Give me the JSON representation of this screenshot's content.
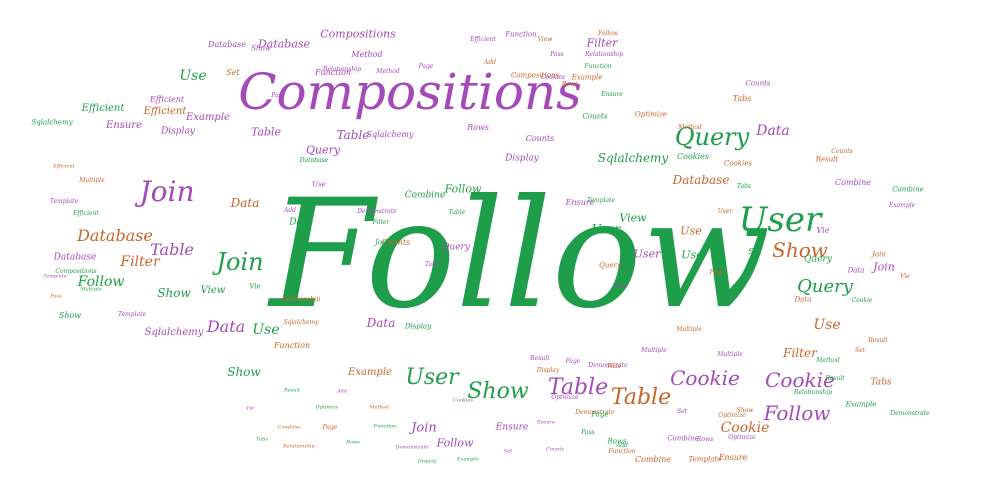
{
  "colors": {
    "green": "#1e9e4a",
    "purple": "#a44ab8",
    "orange": "#c8652a",
    "background": "#ffffff"
  },
  "words": [
    {
      "text": "Follow",
      "color": "green"
    },
    {
      "text": "Compositions",
      "color": "purple"
    },
    {
      "text": "User",
      "color": "green"
    },
    {
      "text": "Query",
      "color": "green"
    },
    {
      "text": "Join",
      "color": "purple"
    },
    {
      "text": "Show",
      "color": "orange"
    },
    {
      "text": "Table",
      "color": "purple"
    },
    {
      "text": "Table",
      "color": "orange"
    },
    {
      "text": "User",
      "color": "green"
    },
    {
      "text": "Show",
      "color": "green"
    },
    {
      "text": "Cookie",
      "color": "purple"
    },
    {
      "text": "Cookie",
      "color": "purple"
    },
    {
      "text": "Follow",
      "color": "purple"
    },
    {
      "text": "Join",
      "color": "green"
    },
    {
      "text": "Database",
      "color": "orange"
    },
    {
      "text": "Table",
      "color": "purple"
    },
    {
      "text": "Filter",
      "color": "orange"
    },
    {
      "text": "Data",
      "color": "purple"
    },
    {
      "text": "Data",
      "color": "purple"
    },
    {
      "text": "Use",
      "color": "green"
    },
    {
      "text": "Use",
      "color": "green"
    },
    {
      "text": "Query",
      "color": "green"
    },
    {
      "text": "Follow",
      "color": "green"
    },
    {
      "text": "Sqlalchemy",
      "color": "green"
    },
    {
      "text": "Query",
      "color": "purple"
    },
    {
      "text": "Database",
      "color": "purple"
    },
    {
      "text": "Use",
      "color": "orange"
    },
    {
      "text": "Data",
      "color": "purple"
    },
    {
      "text": "Show",
      "color": "green"
    },
    {
      "text": "Cookie",
      "color": "orange"
    },
    {
      "text": "Follow",
      "color": "purple"
    },
    {
      "text": "Join",
      "color": "purple"
    },
    {
      "text": "Filter",
      "color": "purple"
    },
    {
      "text": "Filter",
      "color": "orange"
    },
    {
      "text": "User",
      "color": "green"
    },
    {
      "text": "View",
      "color": "green"
    },
    {
      "text": "Compositions",
      "color": "purple"
    },
    {
      "text": "Database",
      "color": "orange"
    },
    {
      "text": "Table",
      "color": "purple"
    },
    {
      "text": "Sqlalchemy",
      "color": "purple"
    },
    {
      "text": "Join",
      "color": "purple"
    },
    {
      "text": "Use",
      "color": "orange"
    },
    {
      "text": "Data",
      "color": "orange"
    },
    {
      "text": "Show",
      "color": "green"
    },
    {
      "text": "Efficient",
      "color": "green"
    },
    {
      "text": "Efficient",
      "color": "orange"
    },
    {
      "text": "Example",
      "color": "purple"
    },
    {
      "text": "Example",
      "color": "orange"
    },
    {
      "text": "Ensure",
      "color": "purple"
    },
    {
      "text": "Ensure",
      "color": "purple"
    },
    {
      "text": "Combine",
      "color": "green"
    },
    {
      "text": "Counts",
      "color": "purple"
    },
    {
      "text": "Display",
      "color": "purple"
    },
    {
      "text": "Display",
      "color": "purple"
    },
    {
      "text": "Tabs",
      "color": "orange"
    },
    {
      "text": "Table",
      "color": "purple"
    },
    {
      "text": "View",
      "color": "green"
    },
    {
      "text": "Use",
      "color": "green"
    },
    {
      "text": "User",
      "color": "purple"
    },
    {
      "text": "Sqlalchemy",
      "color": "purple"
    },
    {
      "text": "Function",
      "color": "orange"
    },
    {
      "text": "Database",
      "color": "purple"
    },
    {
      "text": "Database",
      "color": "purple"
    },
    {
      "text": "Query",
      "color": "purple"
    },
    {
      "text": "Set",
      "color": "orange"
    },
    {
      "text": "Set",
      "color": "green"
    },
    {
      "text": "Method",
      "color": "purple"
    },
    {
      "text": "Counts",
      "color": "orange"
    },
    {
      "text": "Rows",
      "color": "purple"
    },
    {
      "text": "Data",
      "color": "green"
    },
    {
      "text": "Vie",
      "color": "purple"
    },
    {
      "text": "Follow",
      "color": "green"
    },
    {
      "text": "Show",
      "color": "green"
    },
    {
      "text": "Combine",
      "color": "purple"
    },
    {
      "text": "Ensure",
      "color": "purple"
    },
    {
      "text": "Optimize",
      "color": "orange"
    },
    {
      "text": "Relationship",
      "color": "purple"
    },
    {
      "text": "Multiple",
      "color": "orange"
    },
    {
      "text": "Demonstrate",
      "color": "purple"
    },
    {
      "text": "Template",
      "color": "purple"
    },
    {
      "text": "Function",
      "color": "purple"
    },
    {
      "text": "Cookies",
      "color": "green"
    },
    {
      "text": "Result",
      "color": "orange"
    },
    {
      "text": "Sqlalchemy",
      "color": "green"
    },
    {
      "text": "Counts",
      "color": "green"
    },
    {
      "text": "Tabs",
      "color": "orange"
    },
    {
      "text": "Efficient",
      "color": "purple"
    },
    {
      "text": "Template",
      "color": "purple"
    },
    {
      "text": "Compositions",
      "color": "orange"
    },
    {
      "text": "Display",
      "color": "green"
    },
    {
      "text": "Demonstrate",
      "color": "purple"
    },
    {
      "text": "Result",
      "color": "orange"
    },
    {
      "text": "Function",
      "color": "purple"
    },
    {
      "text": "Example",
      "color": "orange"
    },
    {
      "text": "Data",
      "color": "orange"
    },
    {
      "text": "Add",
      "color": "purple"
    },
    {
      "text": "Pass",
      "color": "purple"
    },
    {
      "text": "Page",
      "color": "purple"
    },
    {
      "text": "Vie",
      "color": "green"
    },
    {
      "text": "Multiple",
      "color": "orange"
    },
    {
      "text": "Show",
      "color": "orange"
    },
    {
      "text": "Efficient",
      "color": "green"
    },
    {
      "text": "Optimize",
      "color": "purple"
    },
    {
      "text": "Relationship",
      "color": "orange"
    },
    {
      "text": "Counts",
      "color": "purple"
    },
    {
      "text": "Combine",
      "color": "green"
    },
    {
      "text": "Ensure",
      "color": "orange"
    },
    {
      "text": "Query",
      "color": "green"
    },
    {
      "text": "Page",
      "color": "orange"
    },
    {
      "text": "Method",
      "color": "purple"
    },
    {
      "text": "Combine",
      "color": "orange"
    },
    {
      "text": "Template",
      "color": "green"
    },
    {
      "text": "Pass",
      "color": "orange"
    },
    {
      "text": "Result",
      "color": "green"
    },
    {
      "text": "Join",
      "color": "orange"
    },
    {
      "text": "Rows",
      "color": "orange"
    },
    {
      "text": "Optimize",
      "color": "purple"
    },
    {
      "text": "Pass",
      "color": "purple"
    },
    {
      "text": "Set",
      "color": "purple"
    },
    {
      "text": "Relationship",
      "color": "purple"
    },
    {
      "text": "Page",
      "color": "purple"
    },
    {
      "text": "Multiple",
      "color": "purple"
    },
    {
      "text": "Function",
      "color": "green"
    },
    {
      "text": "Example",
      "color": "green"
    },
    {
      "text": "Cookies",
      "color": "purple"
    },
    {
      "text": "Method",
      "color": "orange"
    },
    {
      "text": "Add",
      "color": "orange"
    },
    {
      "text": "Demonstrate",
      "color": "orange"
    },
    {
      "text": "Rows",
      "color": "green"
    },
    {
      "text": "Efficient",
      "color": "purple"
    },
    {
      "text": "Combine",
      "color": "purple"
    },
    {
      "text": "Template",
      "color": "orange"
    },
    {
      "text": "Multiple",
      "color": "purple"
    },
    {
      "text": "Pass",
      "color": "green"
    },
    {
      "text": "Page",
      "color": "green"
    },
    {
      "text": "Rows",
      "color": "purple"
    },
    {
      "text": "Function",
      "color": "orange"
    },
    {
      "text": "Demonstrate",
      "color": "green"
    },
    {
      "text": "Optimize",
      "color": "orange"
    },
    {
      "text": "Relationship",
      "color": "green"
    },
    {
      "text": "Method",
      "color": "green"
    },
    {
      "text": "Add",
      "color": "green"
    },
    {
      "text": "Result",
      "color": "purple"
    },
    {
      "text": "Cookies",
      "color": "orange"
    },
    {
      "text": "Tabs",
      "color": "green"
    },
    {
      "text": "Set",
      "color": "orange"
    },
    {
      "text": "Example",
      "color": "purple"
    },
    {
      "text": "Ensure",
      "color": "green"
    },
    {
      "text": "Counts",
      "color": "orange"
    },
    {
      "text": "Display",
      "color": "orange"
    },
    {
      "text": "Vie",
      "color": "orange"
    },
    {
      "text": "View",
      "color": "purple"
    },
    {
      "text": "Join",
      "color": "green"
    },
    {
      "text": "Data",
      "color": "purple"
    },
    {
      "text": "Use",
      "color": "purple"
    },
    {
      "text": "Show",
      "color": "purple"
    },
    {
      "text": "Sqlalchemy",
      "color": "orange"
    },
    {
      "text": "Database",
      "color": "green"
    },
    {
      "text": "Filter",
      "color": "green"
    },
    {
      "text": "Table",
      "color": "green"
    },
    {
      "text": "Tabs",
      "color": "purple"
    },
    {
      "text": "Query",
      "color": "orange"
    },
    {
      "text": "User",
      "color": "orange"
    },
    {
      "text": "Cookie",
      "color": "green"
    },
    {
      "text": "Follow",
      "color": "orange"
    },
    {
      "text": "View",
      "color": "orange"
    },
    {
      "text": "Compositions",
      "color": "green"
    },
    {
      "text": "Efficient",
      "color": "orange"
    },
    {
      "text": "Template",
      "color": "purple"
    },
    {
      "text": "Multiple",
      "color": "green"
    },
    {
      "text": "Pass",
      "color": "orange"
    },
    {
      "text": "Page",
      "color": "orange"
    },
    {
      "text": "Rows",
      "color": "green"
    },
    {
      "text": "Add",
      "color": "purple"
    },
    {
      "text": "Method",
      "color": "orange"
    },
    {
      "text": "Result",
      "color": "green"
    },
    {
      "text": "Relationship",
      "color": "orange"
    },
    {
      "text": "Optimize",
      "color": "green"
    },
    {
      "text": "Demonstrate",
      "color": "purple"
    },
    {
      "text": "Function",
      "color": "green"
    },
    {
      "text": "Cookies",
      "color": "purple"
    },
    {
      "text": "Combine",
      "color": "orange"
    },
    {
      "text": "Ensure",
      "color": "purple"
    },
    {
      "text": "Example",
      "color": "green"
    },
    {
      "text": "Counts",
      "color": "purple"
    },
    {
      "text": "Display",
      "color": "green"
    },
    {
      "text": "Set",
      "color": "purple"
    },
    {
      "text": "Vie",
      "color": "purple"
    },
    {
      "text": "Tabs",
      "color": "green"
    }
  ]
}
